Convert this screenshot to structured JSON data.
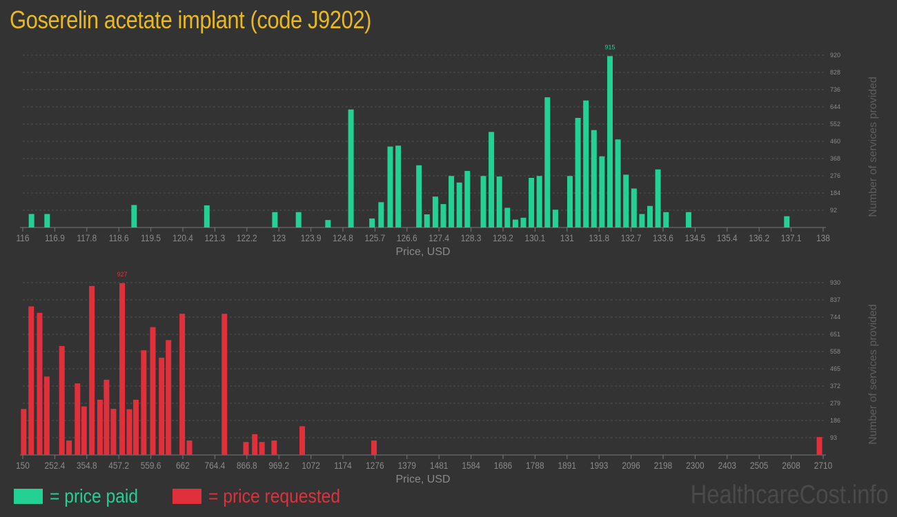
{
  "title": "Goserelin acetate implant (code J9202)",
  "legend": {
    "paid": "= price paid",
    "requested": "= price requested"
  },
  "watermark": "HealthcareCost.info",
  "colors": {
    "paid": "#22d193",
    "requested": "#e0303c",
    "title": "#e8b820",
    "axis_text": "#8a8a8a",
    "background": "#333333"
  },
  "chart_data": [
    {
      "type": "bar",
      "name": "price paid",
      "color": "#22d193",
      "xlabel": "Price, USD",
      "ylabel": "Number of services provided",
      "x_ticks": [
        "116",
        "116.9",
        "117.8",
        "118.6",
        "119.5",
        "120.4",
        "121.3",
        "122.2",
        "123",
        "123.9",
        "124.8",
        "125.7",
        "126.6",
        "127.4",
        "128.3",
        "129.2",
        "130.1",
        "131",
        "131.8",
        "132.7",
        "133.6",
        "134.5",
        "135.4",
        "136.2",
        "137.1",
        "138"
      ],
      "y_ticks": [
        "920",
        "828",
        "736",
        "644",
        "552",
        "460",
        "368",
        "276",
        "184",
        "92"
      ],
      "xlim": [
        116,
        138
      ],
      "ylim": [
        0,
        920
      ],
      "max_label": "915",
      "x": [
        116.24,
        116.67,
        119.06,
        121.06,
        122.93,
        123.58,
        124.39,
        125.02,
        125.6,
        125.85,
        126.1,
        126.32,
        126.89,
        127.11,
        127.34,
        127.56,
        127.78,
        128.0,
        128.22,
        128.66,
        128.88,
        129.1,
        129.32,
        129.54,
        129.76,
        129.98,
        130.2,
        130.42,
        130.64,
        131.04,
        131.26,
        131.48,
        131.7,
        131.92,
        132.14,
        132.36,
        132.58,
        132.8,
        133.02,
        133.24,
        133.46,
        133.68,
        134.3,
        137.0
      ],
      "values": [
        72,
        72,
        120,
        118,
        82,
        82,
        40,
        630,
        48,
        135,
        432,
        437,
        332,
        70,
        165,
        125,
        275,
        240,
        302,
        275,
        510,
        272,
        105,
        42,
        52,
        265,
        275,
        695,
        95,
        275,
        585,
        678,
        520,
        380,
        915,
        470,
        282,
        208,
        72,
        115,
        310,
        82,
        82,
        60
      ]
    },
    {
      "type": "bar",
      "name": "price requested",
      "color": "#e0303c",
      "xlabel": "Price, USD",
      "ylabel": "Number of services provided",
      "x_ticks": [
        "150",
        "252.4",
        "354.8",
        "457.2",
        "559.6",
        "662",
        "764.4",
        "866.8",
        "969.2",
        "1072",
        "1174",
        "1276",
        "1379",
        "1481",
        "1584",
        "1686",
        "1788",
        "1891",
        "1993",
        "2096",
        "2198",
        "2300",
        "2403",
        "2505",
        "2608",
        "2710"
      ],
      "y_ticks": [
        "930",
        "837",
        "744",
        "651",
        "558",
        "465",
        "372",
        "279",
        "186",
        "93"
      ],
      "xlim": [
        150,
        2710
      ],
      "ylim": [
        0,
        930
      ],
      "max_label": "927",
      "x": [
        153,
        177,
        204,
        227,
        275,
        298,
        325,
        346,
        371,
        397,
        418,
        440,
        468,
        491,
        512,
        537,
        566,
        594,
        616,
        660,
        683,
        795,
        864,
        892,
        915,
        954,
        1044,
        1273,
        2698
      ],
      "values": [
        248,
        802,
        767,
        423,
        588,
        78,
        386,
        262,
        912,
        298,
        406,
        249,
        927,
        247,
        298,
        565,
        690,
        525,
        620,
        762,
        78,
        762,
        70,
        112,
        70,
        78,
        155,
        78,
        97
      ]
    }
  ]
}
